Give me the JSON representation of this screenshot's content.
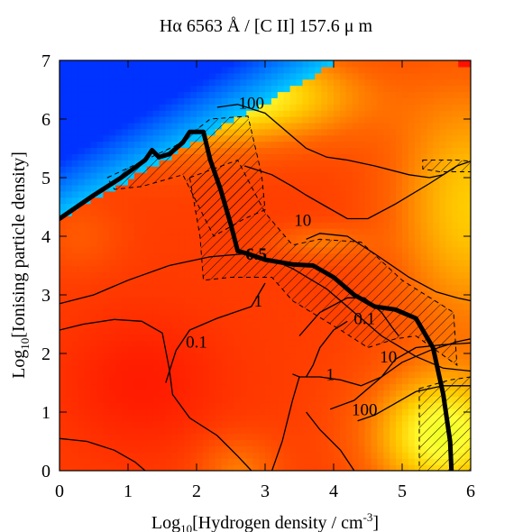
{
  "chart_data": {
    "type": "heatmap",
    "title": "Hα 6563 Å / [C II] 157.6 μ m",
    "xlabel_main": "Log",
    "xlabel_sub": "10",
    "xlabel_rest": "[Hydrogen density / cm",
    "xlabel_sup": "-3",
    "xlabel_end": "]",
    "ylabel_main": "Log",
    "ylabel_sub": "10",
    "ylabel_rest": "[Ionising particle density]",
    "xlim": [
      0,
      6
    ],
    "ylim": [
      0,
      7
    ],
    "x_ticks": [
      "0",
      "1",
      "2",
      "3",
      "4",
      "5",
      "6"
    ],
    "y_ticks": [
      "0",
      "1",
      "2",
      "3",
      "4",
      "5",
      "6",
      "7"
    ],
    "colormap": [
      "#ff0000",
      "#ff6600",
      "#ffcc00",
      "#ffff33",
      "#ccff00",
      "#66ff00",
      "#00ccff",
      "#0033ff"
    ],
    "contour_levels": [
      "100",
      "10",
      "6.5",
      "1",
      "0.1",
      "0.1",
      "1",
      "10",
      "100"
    ],
    "contours": {
      "c100_top": [
        [
          2.3,
          6.2
        ],
        [
          2.6,
          6.25
        ],
        [
          3.0,
          6.1
        ],
        [
          3.3,
          5.8
        ],
        [
          3.6,
          5.5
        ],
        [
          3.9,
          5.35
        ],
        [
          4.2,
          5.3
        ],
        [
          4.6,
          5.2
        ],
        [
          5.1,
          5.05
        ],
        [
          5.4,
          5.0
        ],
        [
          5.6,
          5.05
        ],
        [
          5.8,
          5.2
        ]
      ],
      "c10_mid": [
        [
          2.7,
          5.2
        ],
        [
          3.1,
          5.05
        ],
        [
          3.4,
          4.85
        ],
        [
          3.6,
          4.7
        ],
        [
          3.9,
          4.5
        ],
        [
          4.2,
          4.3
        ],
        [
          4.5,
          4.3
        ],
        [
          4.9,
          4.55
        ],
        [
          5.4,
          4.9
        ],
        [
          5.8,
          5.2
        ],
        [
          6.0,
          5.28
        ]
      ],
      "c10_arc": [
        [
          3.6,
          3.95
        ],
        [
          3.8,
          4.05
        ],
        [
          4.2,
          4.0
        ],
        [
          4.6,
          3.7
        ],
        [
          5.1,
          3.3
        ],
        [
          5.5,
          3.05
        ],
        [
          5.8,
          2.95
        ],
        [
          6.0,
          2.9
        ]
      ],
      "c1_upper": [
        [
          0.0,
          2.85
        ],
        [
          0.5,
          3.0
        ],
        [
          1.0,
          3.25
        ],
        [
          1.6,
          3.5
        ],
        [
          2.2,
          3.65
        ],
        [
          2.7,
          3.7
        ],
        [
          3.1,
          3.6
        ],
        [
          3.4,
          3.45
        ],
        [
          3.9,
          3.1
        ],
        [
          4.3,
          2.7
        ],
        [
          4.7,
          2.3
        ],
        [
          5.2,
          1.95
        ],
        [
          5.6,
          1.75
        ],
        [
          6.0,
          1.7
        ]
      ],
      "c01_loop": [
        [
          1.55,
          1.5
        ],
        [
          1.7,
          2.05
        ],
        [
          1.9,
          2.4
        ],
        [
          2.3,
          2.6
        ],
        [
          2.8,
          2.8
        ],
        [
          3.0,
          3.2
        ]
      ],
      "c01_left": [
        [
          0.0,
          2.4
        ],
        [
          0.35,
          2.5
        ],
        [
          0.8,
          2.58
        ],
        [
          1.2,
          2.55
        ],
        [
          1.5,
          2.35
        ],
        [
          1.6,
          1.75
        ],
        [
          1.65,
          1.3
        ],
        [
          1.9,
          0.9
        ],
        [
          2.3,
          0.6
        ],
        [
          2.6,
          0.25
        ],
        [
          2.8,
          0.0
        ]
      ],
      "c01_right": [
        [
          3.5,
          2.3
        ],
        [
          3.8,
          2.7
        ],
        [
          4.2,
          2.95
        ],
        [
          4.45,
          2.95
        ],
        [
          4.7,
          2.7
        ],
        [
          4.85,
          2.45
        ],
        [
          4.95,
          2.3
        ]
      ],
      "c01_inner": [
        [
          3.6,
          1.6
        ],
        [
          3.7,
          1.8
        ],
        [
          3.8,
          2.1
        ],
        [
          4.0,
          2.4
        ],
        [
          4.2,
          2.55
        ]
      ],
      "c1_lower": [
        [
          3.4,
          1.65
        ],
        [
          3.5,
          1.6
        ],
        [
          3.8,
          1.6
        ],
        [
          4.1,
          1.55
        ],
        [
          4.4,
          1.45
        ],
        [
          4.7,
          1.6
        ],
        [
          4.9,
          1.9
        ],
        [
          5.2,
          2.1
        ],
        [
          5.6,
          2.15
        ],
        [
          6.0,
          2.18
        ]
      ],
      "c10_lower": [
        [
          3.95,
          1.05
        ],
        [
          4.3,
          1.2
        ],
        [
          4.7,
          1.6
        ],
        [
          5.0,
          1.85
        ],
        [
          5.4,
          2.05
        ],
        [
          5.8,
          2.2
        ],
        [
          6.0,
          2.25
        ]
      ],
      "c100_lower": [
        [
          4.35,
          0.85
        ],
        [
          4.6,
          0.95
        ],
        [
          4.9,
          1.15
        ],
        [
          5.2,
          1.35
        ],
        [
          5.6,
          1.45
        ],
        [
          6.0,
          1.45
        ]
      ],
      "misc_left": [
        [
          0.0,
          0.55
        ],
        [
          0.4,
          0.5
        ],
        [
          0.8,
          0.35
        ],
        [
          1.1,
          0.15
        ],
        [
          1.25,
          0.0
        ]
      ],
      "misc_mid": [
        [
          3.1,
          0.0
        ],
        [
          3.25,
          0.5
        ],
        [
          3.4,
          1.2
        ],
        [
          3.5,
          1.6
        ]
      ],
      "misc_right": [
        [
          4.3,
          0.0
        ],
        [
          4.1,
          0.35
        ],
        [
          3.8,
          0.7
        ],
        [
          3.6,
          1.0
        ]
      ]
    },
    "bold_curve": [
      [
        0.0,
        4.3
      ],
      [
        0.5,
        4.7
      ],
      [
        0.9,
        5.0
      ],
      [
        1.25,
        5.3
      ],
      [
        1.35,
        5.47
      ],
      [
        1.45,
        5.35
      ],
      [
        1.6,
        5.4
      ],
      [
        1.8,
        5.6
      ],
      [
        1.9,
        5.78
      ],
      [
        2.1,
        5.78
      ],
      [
        2.2,
        5.3
      ],
      [
        2.35,
        4.8
      ],
      [
        2.5,
        4.2
      ],
      [
        2.6,
        3.75
      ],
      [
        2.75,
        3.7
      ],
      [
        3.0,
        3.6
      ],
      [
        3.4,
        3.52
      ],
      [
        3.7,
        3.5
      ],
      [
        4.0,
        3.3
      ],
      [
        4.3,
        3.0
      ],
      [
        4.6,
        2.8
      ],
      [
        4.9,
        2.75
      ],
      [
        5.2,
        2.6
      ],
      [
        5.45,
        2.1
      ],
      [
        5.6,
        1.3
      ],
      [
        5.7,
        0.5
      ],
      [
        5.72,
        0.0
      ]
    ],
    "hatched_regions": [
      [
        [
          0.7,
          5.0
        ],
        [
          1.7,
          5.55
        ],
        [
          2.2,
          6.0
        ],
        [
          2.75,
          6.05
        ],
        [
          2.95,
          5.05
        ],
        [
          3.0,
          4.45
        ],
        [
          2.7,
          4.3
        ],
        [
          2.25,
          4.0
        ],
        [
          1.8,
          5.05
        ],
        [
          1.2,
          4.85
        ],
        [
          0.8,
          4.8
        ]
      ],
      [
        [
          1.9,
          5.0
        ],
        [
          2.6,
          5.3
        ],
        [
          3.0,
          4.4
        ],
        [
          3.4,
          3.85
        ],
        [
          3.8,
          3.95
        ],
        [
          4.4,
          3.9
        ],
        [
          5.0,
          3.25
        ],
        [
          5.75,
          2.7
        ],
        [
          5.8,
          1.8
        ],
        [
          5.2,
          2.3
        ],
        [
          4.9,
          2.25
        ],
        [
          4.5,
          2.1
        ],
        [
          4.1,
          2.4
        ],
        [
          3.4,
          2.9
        ],
        [
          3.1,
          3.3
        ],
        [
          2.5,
          3.3
        ],
        [
          2.1,
          3.25
        ],
        [
          2.05,
          4.0
        ]
      ],
      [
        [
          5.25,
          1.4
        ],
        [
          5.7,
          1.55
        ],
        [
          6.0,
          1.6
        ],
        [
          6.0,
          0.0
        ],
        [
          5.25,
          0.0
        ]
      ],
      [
        [
          5.3,
          5.3
        ],
        [
          5.8,
          5.3
        ],
        [
          6.0,
          5.28
        ],
        [
          6.0,
          5.1
        ],
        [
          5.55,
          5.1
        ],
        [
          5.3,
          5.15
        ]
      ]
    ]
  }
}
